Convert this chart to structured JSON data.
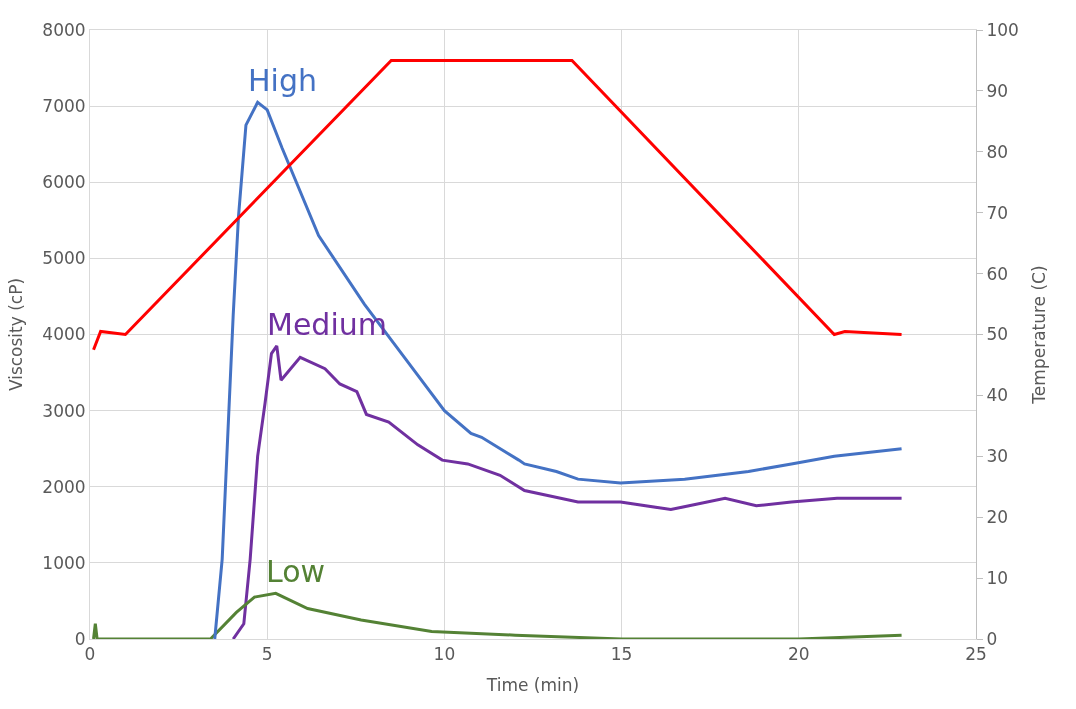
{
  "chart_data": {
    "type": "line",
    "xlabel": "Time (min)",
    "ylabel": "Viscosity (cP)",
    "y2label": "Temperature (C)",
    "xlim": [
      0,
      25
    ],
    "xticks": [
      0,
      5,
      10,
      15,
      20,
      25
    ],
    "ylim": [
      0,
      8000
    ],
    "yticks": [
      0,
      1000,
      2000,
      3000,
      4000,
      5000,
      6000,
      7000,
      8000
    ],
    "y2lim": [
      0,
      100
    ],
    "y2ticks": [
      0,
      10,
      20,
      30,
      40,
      50,
      60,
      70,
      80,
      90,
      100
    ],
    "grid": true,
    "legend": false,
    "marker": "none",
    "line_style": "solid",
    "series": [
      {
        "name": "Medium",
        "color": "#7030a0",
        "x": [
          4.04,
          4.34,
          4.52,
          4.73,
          4.94,
          5.12,
          5.27,
          5.39,
          5.93,
          6.63,
          7.05,
          7.53,
          7.8,
          8.43,
          9.25,
          9.94,
          10.66,
          11.57,
          12.26,
          13.77,
          14.97,
          16.39,
          17.92,
          18.8,
          19.79,
          21.08,
          22.9
        ],
        "values": [
          0,
          200,
          1050,
          2400,
          3100,
          3750,
          3850,
          3400,
          3700,
          3550,
          3350,
          3250,
          2950,
          2850,
          2550,
          2350,
          2300,
          2150,
          1950,
          1800,
          1800,
          1700,
          1850,
          1750,
          1800,
          1850,
          1850
        ]
      },
      {
        "name": "Low",
        "color": "#548235",
        "x": [
          0.1,
          0.15,
          0.2,
          1,
          3.4,
          4.13,
          4.64,
          5.24,
          6.14,
          7.65,
          9.64,
          12,
          15,
          20,
          22.9
        ],
        "values": [
          0,
          200,
          0,
          0,
          0,
          350,
          550,
          600,
          400,
          250,
          100,
          50,
          0,
          0,
          50
        ]
      },
      {
        "name": "High",
        "color": "#4472c4",
        "x": [
          3.52,
          3.73,
          4.04,
          4.19,
          4.4,
          4.73,
          5.0,
          5.42,
          6.45,
          7.74,
          8.95,
          10,
          10.75,
          11.05,
          12.1,
          12.26,
          13.16,
          13.77,
          14.97,
          16.78,
          18.58,
          19.79,
          21,
          22.9
        ],
        "values": [
          0,
          1050,
          4250,
          5550,
          6750,
          7050,
          6950,
          6450,
          5300,
          4400,
          3650,
          3000,
          2700,
          2650,
          2350,
          2300,
          2200,
          2100,
          2050,
          2100,
          2200,
          2300,
          2400,
          2500
        ]
      },
      {
        "color": "#ff0000",
        "axis": "y2",
        "x": [
          0.1,
          0.3,
          1.0,
          8.5,
          13.6,
          21.0,
          21.3,
          22.9
        ],
        "values": [
          47.5,
          50.5,
          50,
          95,
          95,
          50,
          50.5,
          50
        ]
      }
    ]
  }
}
